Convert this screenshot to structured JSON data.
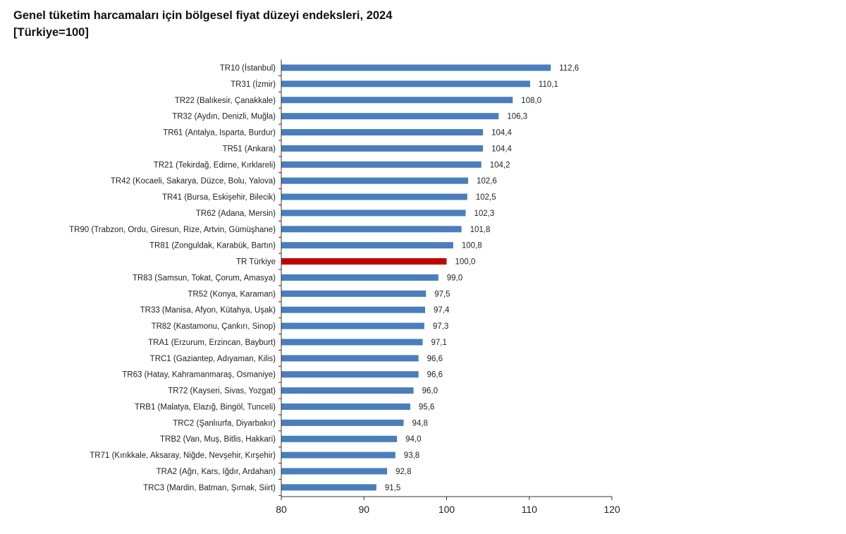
{
  "chart_data": {
    "type": "bar",
    "orientation": "horizontal",
    "title": "Genel tüketim harcamaları için bölgesel fiyat düzeyi endeksleri, 2024",
    "subtitle": "[Türkiye=100]",
    "categories": [
      "TR10 (İstanbul)",
      "TR31 (İzmir)",
      "TR22 (Balıkesir, Çanakkale)",
      "TR32 (Aydın, Denizli, Muğla)",
      "TR61 (Antalya, Isparta, Burdur)",
      "TR51 (Ankara)",
      "TR21 (Tekirdağ, Edirne, Kırklareli)",
      "TR42 (Kocaeli, Sakarya, Düzce, Bolu, Yalova)",
      "TR41 (Bursa, Eskişehir, Bilecik)",
      "TR62 (Adana, Mersin)",
      "TR90 (Trabzon, Ordu, Giresun, Rize, Artvin, Gümüşhane)",
      "TR81 (Zonguldak, Karabük, Bartın)",
      "TR Türkiye",
      "TR83 (Samsun, Tokat, Çorum, Amasya)",
      "TR52 (Konya, Karaman)",
      "TR33 (Manisa, Afyon, Kütahya, Uşak)",
      "TR82 (Kastamonu, Çankırı, Sinop)",
      "TRA1 (Erzurum, Erzincan, Bayburt)",
      "TRC1 (Gaziantep, Adıyaman, Kilis)",
      "TR63 (Hatay, Kahramanmaraş, Osmaniye)",
      "TR72 (Kayseri, Sivas, Yozgat)",
      "TRB1 (Malatya, Elazığ, Bingöl, Tunceli)",
      "TRC2 (Şanlıurfa, Diyarbakır)",
      "TRB2 (Van, Muş, Bitlis, Hakkari)",
      "TR71 (Kırıkkale, Aksaray, Niğde, Nevşehir, Kırşehir)",
      "TRA2 (Ağrı, Kars, Iğdır, Ardahan)",
      "TRC3 (Mardin, Batman, Şırnak, Siirt)"
    ],
    "values": [
      112.6,
      110.1,
      108.0,
      106.3,
      104.4,
      104.4,
      104.2,
      102.6,
      102.5,
      102.3,
      101.8,
      100.8,
      100.0,
      99.0,
      97.5,
      97.4,
      97.3,
      97.1,
      96.6,
      96.6,
      96.0,
      95.6,
      94.8,
      94.0,
      93.8,
      92.8,
      91.5
    ],
    "value_labels": [
      "112,6",
      "110,1",
      "108,0",
      "106,3",
      "104,4",
      "104,4",
      "104,2",
      "102,6",
      "102,5",
      "102,3",
      "101,8",
      "100,8",
      "100,0",
      "99,0",
      "97,5",
      "97,4",
      "97,3",
      "97,1",
      "96,6",
      "96,6",
      "96,0",
      "95,6",
      "94,8",
      "94,0",
      "93,8",
      "92,8",
      "91,5"
    ],
    "xlim": [
      80,
      120
    ],
    "xticks": [
      "80",
      "90",
      "100",
      "110",
      "120"
    ],
    "grid": false,
    "colors": {
      "bar": "#4a7ebb",
      "highlight": "#c00000",
      "highlight_category": "TR Türkiye"
    }
  }
}
